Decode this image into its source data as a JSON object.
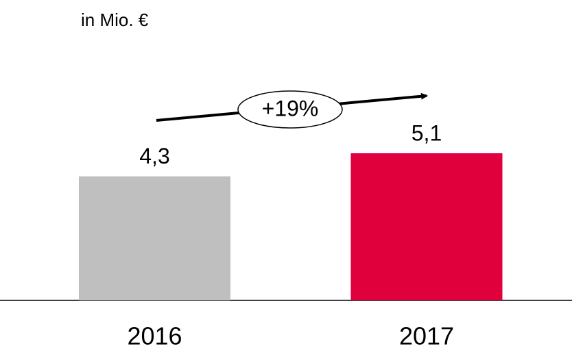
{
  "chart_data": {
    "type": "bar",
    "subtitle": "in Mio. €",
    "categories": [
      "2016",
      "2017"
    ],
    "values": [
      4.3,
      5.1
    ],
    "value_labels": [
      "4,3",
      "5,1"
    ],
    "colors": [
      "#bfbfbf",
      "#e0003c"
    ],
    "annotation": "+19%"
  }
}
